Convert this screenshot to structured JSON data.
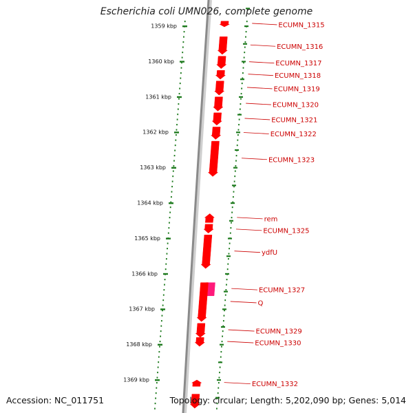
{
  "title": "Escherichia coli UMN026, complete genome",
  "footer": {
    "accession": "Accession: NC_011751",
    "topology": "Topology: circular; Length: 5,202,090 bp; Genes: 5,014"
  },
  "colors": {
    "gene": "#ff0000",
    "gene_highlight": "#ff1a7a",
    "label": "#cc0000",
    "tick": "#1d7a1d",
    "backbone": "#8a8a8a"
  },
  "scale": {
    "unit": "kbp",
    "ticks": [
      {
        "kbp": 1359,
        "label": "1359 kbp"
      },
      {
        "kbp": 1360,
        "label": "1360 kbp"
      },
      {
        "kbp": 1361,
        "label": "1361 kbp"
      },
      {
        "kbp": 1362,
        "label": "1362 kbp"
      },
      {
        "kbp": 1363,
        "label": "1363 kbp"
      },
      {
        "kbp": 1364,
        "label": "1364 kbp"
      },
      {
        "kbp": 1365,
        "label": "1365 kbp"
      },
      {
        "kbp": 1366,
        "label": "1366 kbp"
      },
      {
        "kbp": 1367,
        "label": "1367 kbp"
      },
      {
        "kbp": 1368,
        "label": "1368 kbp"
      },
      {
        "kbp": 1369,
        "label": "1369 kbp"
      }
    ]
  },
  "genes": [
    {
      "label": "ECUMN_1315",
      "start": 1358.86,
      "end": 1359.02,
      "strand": "+",
      "highlight": false
    },
    {
      "label": "ECUMN_1316",
      "start": 1359.3,
      "end": 1359.8,
      "strand": "+",
      "highlight": false
    },
    {
      "label": "ECUMN_1317",
      "start": 1359.85,
      "end": 1360.2,
      "strand": "+",
      "highlight": false
    },
    {
      "label": "ECUMN_1318",
      "start": 1360.25,
      "end": 1360.5,
      "strand": "+",
      "highlight": false
    },
    {
      "label": "ECUMN_1319",
      "start": 1360.55,
      "end": 1360.95,
      "strand": "+",
      "highlight": false
    },
    {
      "label": "ECUMN_1320",
      "start": 1361.0,
      "end": 1361.4,
      "strand": "+",
      "highlight": false
    },
    {
      "label": "ECUMN_1321",
      "start": 1361.45,
      "end": 1361.8,
      "strand": "+",
      "highlight": false
    },
    {
      "label": "ECUMN_1322",
      "start": 1361.85,
      "end": 1362.2,
      "strand": "+",
      "highlight": false
    },
    {
      "label": "ECUMN_1323",
      "start": 1362.25,
      "end": 1363.25,
      "strand": "+",
      "highlight": false
    },
    {
      "label": "rem",
      "start": 1364.3,
      "end": 1364.55,
      "strand": "-",
      "highlight": false
    },
    {
      "label": "ECUMN_1325",
      "start": 1364.6,
      "end": 1364.85,
      "strand": "+",
      "highlight": false
    },
    {
      "label": "ydfU",
      "start": 1364.9,
      "end": 1365.85,
      "strand": "+",
      "highlight": false
    },
    {
      "label": "ECUMN_1327",
      "start": 1366.25,
      "end": 1366.62,
      "strand": "-",
      "highlight": true
    },
    {
      "label": "Q",
      "start": 1366.25,
      "end": 1367.35,
      "strand": "+",
      "highlight": false
    },
    {
      "label": "ECUMN_1329",
      "start": 1367.4,
      "end": 1367.8,
      "strand": "+",
      "highlight": false
    },
    {
      "label": "ECUMN_1330",
      "start": 1367.8,
      "end": 1368.05,
      "strand": "+",
      "highlight": false
    },
    {
      "label": "ECUMN_1332",
      "start": 1369.0,
      "end": 1369.18,
      "strand": "-",
      "highlight": false
    },
    {
      "label": "",
      "start": 1369.4,
      "end": 1369.8,
      "strand": "+",
      "highlight": false
    }
  ]
}
